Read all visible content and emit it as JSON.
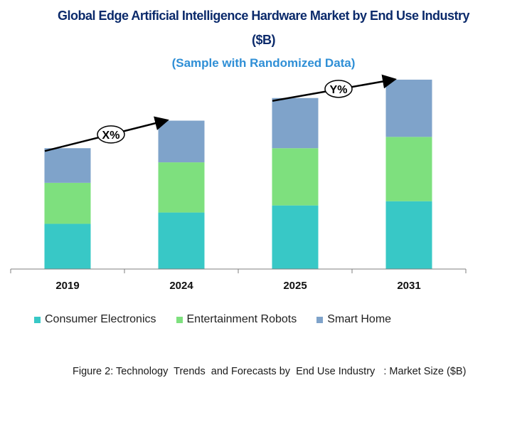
{
  "chart_data": {
    "type": "bar",
    "stacked": true,
    "title": "Global Edge Artificial Intelligence Hardware Market by End Use Industry",
    "title_unit": "($B)",
    "subtitle": "(Sample with Randomized Data)",
    "categories": [
      "2019",
      "2024",
      "2025",
      "2031"
    ],
    "series": [
      {
        "name": "Consumer Electronics",
        "color": "#38c8c6",
        "values": [
          64,
          80,
          90,
          96
        ]
      },
      {
        "name": "Entertainment Robots",
        "color": "#7ee07e",
        "values": [
          58,
          71,
          81,
          91
        ]
      },
      {
        "name": "Smart Home",
        "color": "#7fa3ca",
        "values": [
          49,
          59,
          71,
          81
        ]
      }
    ],
    "annotations": [
      {
        "label": "X%",
        "from": "2019",
        "to": "2024"
      },
      {
        "label": "Y%",
        "from": "2025",
        "to": "2031"
      }
    ],
    "xlabel": "",
    "ylabel": "",
    "ylim": [
      0,
      280
    ],
    "legend_position": "bottom",
    "grid": false
  },
  "caption": "Figure 2: Technology  Trends  and Forecasts by  End Use Industry   : Market Size ($B)"
}
